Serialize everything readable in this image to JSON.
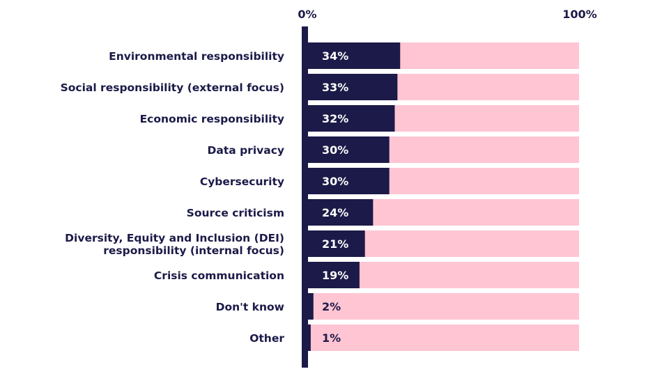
{
  "chart_data": {
    "type": "bar",
    "orientation": "horizontal",
    "axis_start_label": "0%",
    "axis_end_label": "100%",
    "xlim": [
      0,
      100
    ],
    "grid": false,
    "categories": [
      [
        "Environmental responsibility"
      ],
      [
        "Social responsibility (external focus)"
      ],
      [
        "Economic responsibility"
      ],
      [
        "Data privacy"
      ],
      [
        "Cybersecurity"
      ],
      [
        "Source criticism"
      ],
      [
        "Diversity, Equity and Inclusion (DEI)",
        "responsibility (internal focus)"
      ],
      [
        "Crisis communication"
      ],
      [
        "Don't know"
      ],
      [
        "Other"
      ]
    ],
    "values": [
      34,
      33,
      32,
      30,
      30,
      24,
      21,
      19,
      2,
      1
    ],
    "value_labels": [
      "34%",
      "33%",
      "32%",
      "30%",
      "30%",
      "24%",
      "21%",
      "19%",
      "2%",
      "1%"
    ]
  },
  "colors": {
    "bar": "#1b1a48",
    "background_bar": "#ffc5d3",
    "text": "#1b1a48",
    "value_text_inside": "#ffffff"
  }
}
